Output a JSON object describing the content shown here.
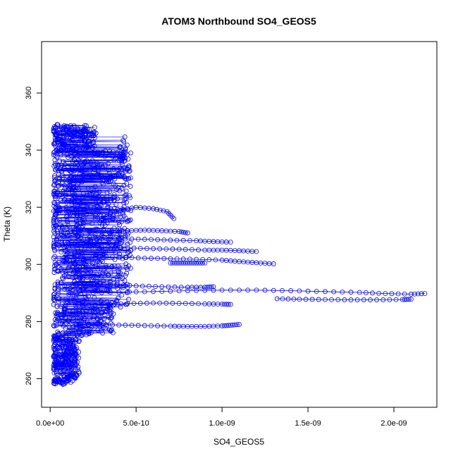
{
  "chart_data": {
    "type": "scatter",
    "title": "ATOM3 Northbound SO4_GEOS5",
    "xlabel": "SO4_GEOS5",
    "ylabel": "Theta (K)",
    "xlim": [
      -5e-11,
      2.25e-09
    ],
    "ylim": [
      250,
      378
    ],
    "x_ticks": [
      0,
      5e-10,
      1e-09,
      1.5e-09,
      2e-09
    ],
    "x_tick_labels": [
      "0.0e+00",
      "5.0e-10",
      "1.0e-09",
      "1.5e-09",
      "2.0e-09"
    ],
    "y_ticks": [
      260,
      280,
      300,
      320,
      340,
      360
    ],
    "y_tick_labels": [
      "260",
      "280",
      "300",
      "320",
      "340",
      "360"
    ],
    "grid": false,
    "legend": "none",
    "colors": {
      "series": "#0000ff",
      "axis": "#000000"
    },
    "series": [
      {
        "marker": "open-circle",
        "line": true,
        "transects": [
          {
            "x": [
              1.5e-10,
              2.5e-10,
              4e-10,
              5.5e-10,
              7e-10,
              8e-10,
              9e-10,
              1e-09,
              1.05e-09,
              1.1e-09
            ],
            "y": [
              279,
              279,
              278.8,
              278.6,
              278.4,
              278.3,
              278.3,
              278.5,
              278.7,
              279
            ]
          },
          {
            "x": [
              1.5e-10,
              3e-10,
              4.5e-10,
              6e-10,
              7.5e-10,
              9e-10,
              1e-09,
              1.05e-09
            ],
            "y": [
              285.5,
              286,
              286.3,
              286.5,
              286.4,
              286.2,
              286.1,
              286
            ]
          },
          {
            "x": [
              2e-10,
              4e-10,
              6e-10,
              8e-10,
              1e-09,
              1.2e-09,
              1.4e-09,
              1.6e-09,
              1.8e-09,
              1.95e-09,
              2.1e-09,
              2.18e-09
            ],
            "y": [
              290,
              290.3,
              290.5,
              290.8,
              291,
              291,
              290.8,
              290.5,
              290.2,
              289.8,
              289.6,
              289.8
            ]
          },
          {
            "x": [
              1.32e-09,
              1.45e-09,
              1.6e-09,
              1.75e-09,
              1.9e-09,
              2.05e-09,
              2.1e-09
            ],
            "y": [
              288,
              287.8,
              287.7,
              287.6,
              287.6,
              287.7,
              287.8
            ]
          },
          {
            "x": [
              2e-10,
              3.5e-10,
              5e-10,
              6.5e-10,
              8e-10,
              9e-10,
              9.5e-10
            ],
            "y": [
              293,
              293,
              292.5,
              292.2,
              292,
              292,
              292.2
            ]
          },
          {
            "x": [
              2.5e-10,
              4e-10,
              5.5e-10,
              7e-10,
              8.5e-10,
              1e-09,
              1.1e-09,
              1.2e-09,
              1.3e-09
            ],
            "y": [
              303,
              302.5,
              302.2,
              302,
              301.8,
              301.5,
              301,
              300.6,
              300.2
            ]
          },
          {
            "x": [
              3e-10,
              4.5e-10,
              6e-10,
              7.5e-10,
              9e-10,
              1e-09,
              1.1e-09,
              1.2e-09
            ],
            "y": [
              306,
              305.8,
              305.5,
              305.3,
              305,
              305,
              304.8,
              304.5
            ]
          },
          {
            "x": [
              3e-10,
              4e-10,
              5.5e-10,
              7e-10,
              8.5e-10,
              9.5e-10,
              1.05e-09
            ],
            "y": [
              309,
              309,
              308.8,
              308.5,
              308.3,
              308,
              307.8
            ]
          },
          {
            "x": [
              3e-10,
              4e-10,
              5e-10,
              6e-10,
              6.8e-10,
              7.2e-10
            ],
            "y": [
              316,
              319,
              320,
              319.5,
              318.5,
              316
            ]
          },
          {
            "x": [
              3.5e-10,
              4.5e-10,
              5.5e-10,
              6.5e-10,
              7.5e-10,
              8e-10
            ],
            "y": [
              311,
              311.8,
              312,
              311.8,
              311.5,
              311
            ]
          },
          {
            "x": [
              7e-10,
              7.5e-10,
              8e-10,
              8.5e-10,
              9e-10
            ],
            "y": [
              300.5,
              300.5,
              300.5,
              300.5,
              300.5
            ]
          }
        ],
        "cloud": {
          "x_range": [
            0.0,
            4.5e-10
          ],
          "y_range": [
            258,
            349
          ],
          "description_free": true
        }
      }
    ]
  }
}
